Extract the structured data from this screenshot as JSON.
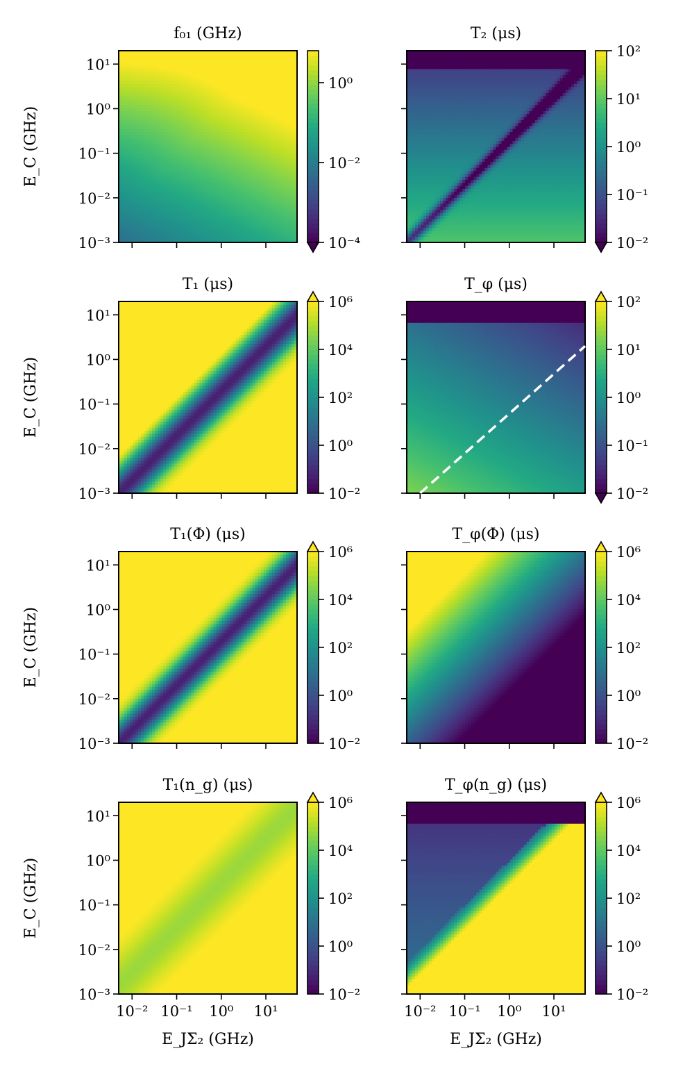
{
  "colors": {
    "viridis": [
      "#440154",
      "#482475",
      "#414487",
      "#355f8d",
      "#2a788e",
      "#21918c",
      "#22a884",
      "#44bf70",
      "#7ad151",
      "#bddf26",
      "#fde725"
    ],
    "marker": "#ffffff"
  },
  "chart_data": [
    {
      "type": "heatmap",
      "title": "f₀₁ (GHz)",
      "x_range": [
        -2.3,
        1.7
      ],
      "y_range": [
        -3,
        1.3
      ],
      "xlabel": "E_JΣ₂ (GHz)",
      "ylabel": "E_C (GHz)",
      "xticks": [
        "",
        "",
        "",
        ""
      ],
      "yticks": [
        "10⁻³",
        "10⁻²",
        "10⁻¹",
        "10⁰",
        "10¹"
      ],
      "colorbar": {
        "min": -4,
        "max": 0.8,
        "ticks": [
          "10⁻⁴",
          "10⁻²",
          "10⁰"
        ],
        "extend": "min"
      }
    },
    {
      "type": "heatmap",
      "title": "T₂ (μs)",
      "x_range": [
        -2.3,
        1.7
      ],
      "y_range": [
        -3,
        1.3
      ],
      "xticks": [
        "",
        "",
        "",
        ""
      ],
      "yticks": [
        "",
        "",
        "",
        "",
        ""
      ],
      "colorbar": {
        "min": -2,
        "max": 2,
        "ticks": [
          "10⁻²",
          "10⁻¹",
          "10⁰",
          "10¹",
          "10²"
        ],
        "extend": "min"
      }
    },
    {
      "type": "heatmap",
      "title": "T₁ (μs)",
      "x_range": [
        -2.3,
        1.7
      ],
      "y_range": [
        -3,
        1.3
      ],
      "xlabel": "E_JΣ₂ (GHz)",
      "ylabel": "E_C (GHz)",
      "xticks": [
        "",
        "",
        "",
        ""
      ],
      "yticks": [
        "10⁻³",
        "10⁻²",
        "10⁻¹",
        "10⁰",
        "10¹"
      ],
      "colorbar": {
        "min": -2,
        "max": 6,
        "ticks": [
          "10⁻²",
          "10⁰",
          "10²",
          "10⁴",
          "10⁶"
        ],
        "extend": "max"
      }
    },
    {
      "type": "heatmap",
      "title": "T_φ (μs)",
      "x_range": [
        -2.3,
        1.7
      ],
      "y_range": [
        -3,
        1.3
      ],
      "xticks": [
        "",
        "",
        "",
        ""
      ],
      "yticks": [
        "",
        "",
        "",
        "",
        ""
      ],
      "colorbar": {
        "min": -2,
        "max": 2,
        "ticks": [
          "10⁻²",
          "10⁻¹",
          "10⁰",
          "10¹",
          "10²"
        ],
        "extend": "both"
      },
      "overlay_line": {
        "x": [
          -2,
          1.7
        ],
        "y": [
          -3,
          0.3
        ],
        "style": "dashed"
      }
    },
    {
      "type": "heatmap",
      "title": "T₁(Φ) (μs)",
      "x_range": [
        -2.3,
        1.7
      ],
      "y_range": [
        -3,
        1.3
      ],
      "xlabel": "E_JΣ₂ (GHz)",
      "ylabel": "E_C (GHz)",
      "xticks": [
        "",
        "",
        "",
        ""
      ],
      "yticks": [
        "10⁻³",
        "10⁻²",
        "10⁻¹",
        "10⁰",
        "10¹"
      ],
      "colorbar": {
        "min": -2,
        "max": 6,
        "ticks": [
          "10⁻²",
          "10⁰",
          "10²",
          "10⁴",
          "10⁶"
        ],
        "extend": "max"
      }
    },
    {
      "type": "heatmap",
      "title": "T_φ(Φ) (μs)",
      "x_range": [
        -2.3,
        1.7
      ],
      "y_range": [
        -3,
        1.3
      ],
      "xticks": [
        "",
        "",
        "",
        ""
      ],
      "yticks": [
        "",
        "",
        "",
        "",
        ""
      ],
      "colorbar": {
        "min": -2,
        "max": 6,
        "ticks": [
          "10⁻²",
          "10⁰",
          "10²",
          "10⁴",
          "10⁶"
        ],
        "extend": "max"
      }
    },
    {
      "type": "heatmap",
      "title": "T₁(n_g) (μs)",
      "x_range": [
        -2.3,
        1.7
      ],
      "y_range": [
        -3,
        1.3
      ],
      "xlabel": "E_JΣ₂ (GHz)",
      "ylabel": "E_C (GHz)",
      "xticks": [
        "10⁻²",
        "10⁻¹",
        "10⁰",
        "10¹"
      ],
      "yticks": [
        "10⁻³",
        "10⁻²",
        "10⁻¹",
        "10⁰",
        "10¹"
      ],
      "colorbar": {
        "min": -2,
        "max": 6,
        "ticks": [
          "10⁻²",
          "10⁰",
          "10²",
          "10⁴",
          "10⁶"
        ],
        "extend": "max"
      }
    },
    {
      "type": "heatmap",
      "title": "T_φ(n_g) (μs)",
      "x_range": [
        -2.3,
        1.7
      ],
      "y_range": [
        -3,
        1.3
      ],
      "xlabel": "E_JΣ₂ (GHz)",
      "xticks": [
        "10⁻²",
        "10⁻¹",
        "10⁰",
        "10¹"
      ],
      "yticks": [
        "",
        "",
        "",
        "",
        ""
      ],
      "colorbar": {
        "min": -2,
        "max": 6,
        "ticks": [
          "10⁻²",
          "10⁰",
          "10²",
          "10⁴",
          "10⁶"
        ],
        "extend": "max"
      }
    }
  ]
}
